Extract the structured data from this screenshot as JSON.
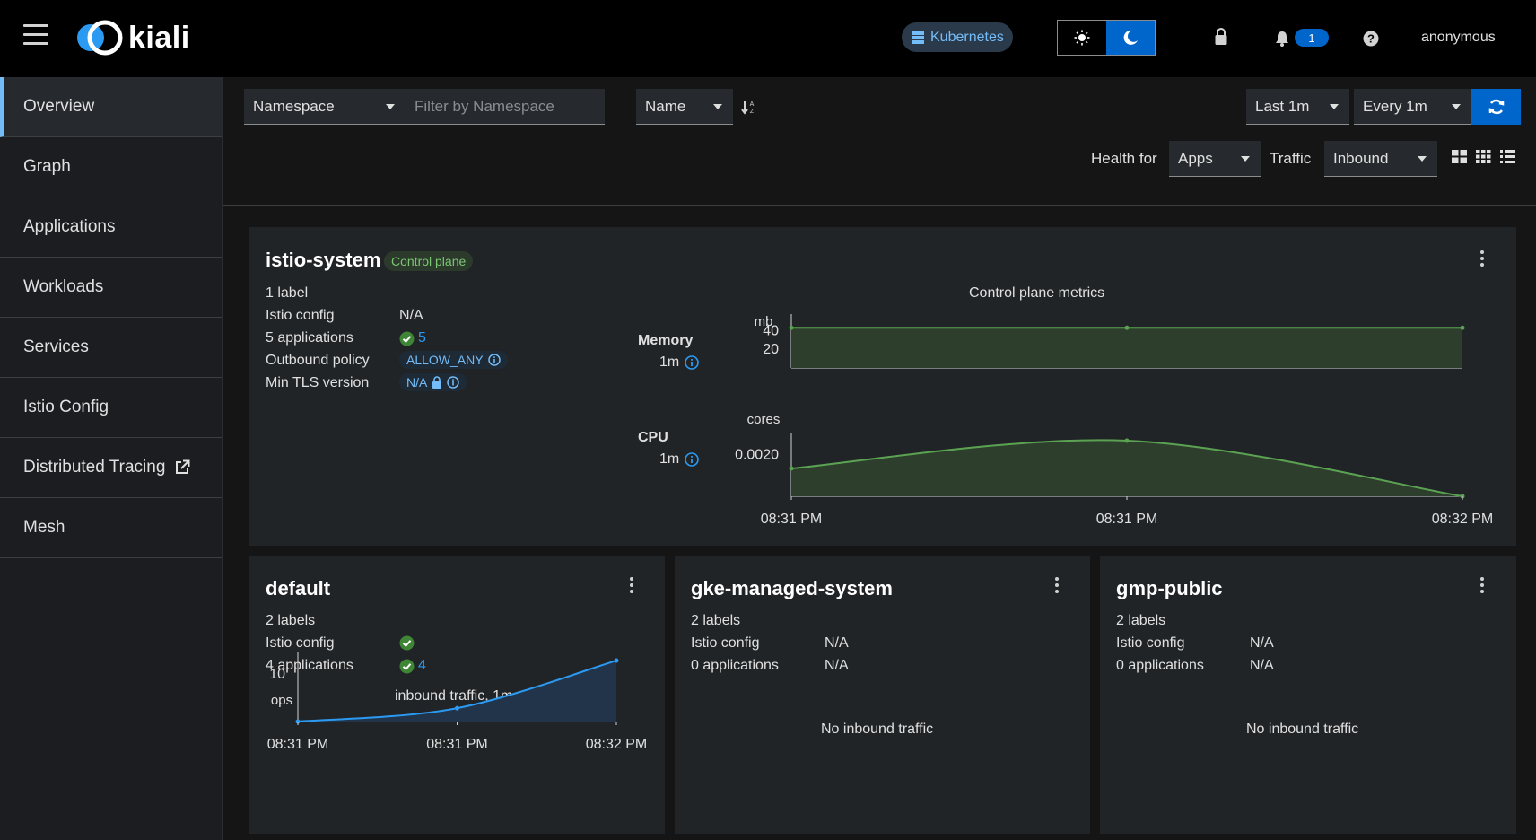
{
  "masthead": {
    "logo_text": "kiali",
    "cluster_chip": "Kubernetes",
    "notification_count": "1",
    "username": "anonymous"
  },
  "sidebar": {
    "items": [
      {
        "label": "Overview"
      },
      {
        "label": "Graph"
      },
      {
        "label": "Applications"
      },
      {
        "label": "Workloads"
      },
      {
        "label": "Services"
      },
      {
        "label": "Istio Config"
      },
      {
        "label": "Distributed Tracing"
      },
      {
        "label": "Mesh"
      }
    ]
  },
  "toolbar": {
    "filter_type": "Namespace",
    "filter_placeholder": "Filter by Namespace",
    "sort_by": "Name",
    "duration": "Last 1m",
    "refresh_interval": "Every 1m",
    "health_for_label": "Health for",
    "health_for_value": "Apps",
    "traffic_label": "Traffic",
    "traffic_value": "Inbound"
  },
  "colors": {
    "accent": "#0066cc",
    "link": "#2b9af3",
    "success": "#3e8635",
    "chart_green": "#5ba352",
    "chart_blue": "#2b9af3"
  },
  "namespaces": {
    "istio_system": {
      "name": "istio-system",
      "badge": "Control plane",
      "labels_link": "1 label",
      "istio_config_label": "Istio config",
      "istio_config_value": "N/A",
      "apps_label": "5 applications",
      "apps_value": "5",
      "outbound_label": "Outbound policy",
      "outbound_value": "ALLOW_ANY",
      "tls_label": "Min TLS version",
      "tls_value": "N/A",
      "metrics_title": "Control plane metrics",
      "memory_label": "Memory",
      "memory_interval": "1m",
      "cpu_label": "CPU",
      "cpu_interval": "1m"
    },
    "default": {
      "name": "default",
      "labels_link": "2 labels",
      "istio_config_label": "Istio config",
      "apps_label": "4 applications",
      "apps_value": "4",
      "chart_title": "inbound traffic, 1m"
    },
    "gke_managed_system": {
      "name": "gke-managed-system",
      "labels_link": "2 labels",
      "istio_config_label": "Istio config",
      "istio_config_value": "N/A",
      "apps_label": "0 applications",
      "apps_value": "N/A",
      "no_traffic": "No inbound traffic"
    },
    "gmp_public": {
      "name": "gmp-public",
      "labels_link": "2 labels",
      "istio_config_label": "Istio config",
      "istio_config_value": "N/A",
      "apps_label": "0 applications",
      "apps_value": "N/A",
      "no_traffic": "No inbound traffic"
    }
  },
  "chart_data": [
    {
      "type": "area",
      "title": "Memory",
      "ylabel": "mb",
      "x": [
        "08:31 PM",
        "08:31 PM",
        "08:32 PM"
      ],
      "values": [
        43,
        43,
        43
      ],
      "ylim": [
        0,
        50
      ],
      "yticks": [
        "40",
        "20"
      ]
    },
    {
      "type": "area",
      "title": "CPU",
      "ylabel": "cores",
      "x": [
        "08:31 PM",
        "08:31 PM",
        "08:32 PM"
      ],
      "values": [
        0.0015,
        0.0025,
        0.0005
      ],
      "ylim": [
        0.0005,
        0.0025
      ],
      "yticks": [
        "0.0020"
      ]
    },
    {
      "type": "area",
      "title": "inbound traffic, 1m",
      "ylabel": "ops",
      "x": [
        "08:31 PM",
        "08:31 PM",
        "08:32 PM"
      ],
      "values": [
        0,
        2.8,
        12.8
      ],
      "ylim": [
        0,
        13
      ],
      "yticks": [
        "10"
      ]
    }
  ]
}
